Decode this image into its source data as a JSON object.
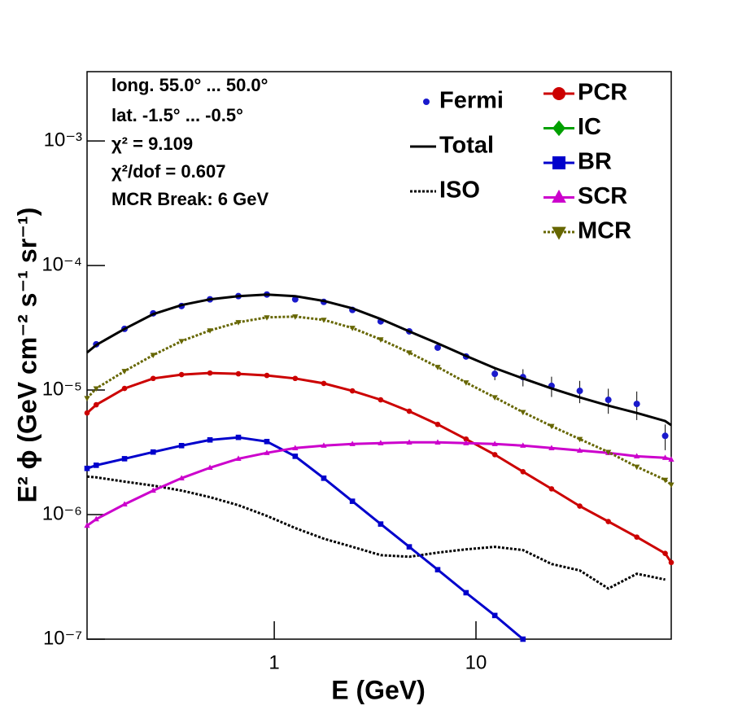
{
  "chart_data": {
    "type": "line",
    "log_x": true,
    "log_y": true,
    "xlabel": "E (GeV)",
    "ylabel": "E² ϕ (GeV cm⁻² s⁻¹ sr⁻¹)",
    "xlim": [
      0.118,
      92.9
    ],
    "ylim": [
      1e-07,
      0.0036
    ],
    "xticks": [
      1,
      10
    ],
    "yticks": [
      {
        "value": 1e-07,
        "label": "10⁻⁷"
      },
      {
        "value": 1e-06,
        "label": "10⁻⁶"
      },
      {
        "value": 1e-05,
        "label": "10⁻⁵"
      },
      {
        "value": 0.0001,
        "label": "10⁻⁴"
      },
      {
        "value": 0.001,
        "label": "10⁻³"
      }
    ],
    "annotations": [
      "long. 55.0° ... 50.0°",
      "lat. -1.5° ... -0.5°",
      "χ² = 9.109",
      "χ²/dof = 0.607",
      "MCR Break:  6 GeV"
    ],
    "series": [
      {
        "name": "Fermi",
        "color": "#1a1acc",
        "marker": "circle",
        "line": "none",
        "x": [
          0.131,
          0.181,
          0.251,
          0.347,
          0.48,
          0.664,
          0.919,
          1.27,
          1.76,
          2.44,
          3.37,
          4.67,
          6.46,
          8.93,
          12.4,
          17.1,
          23.7,
          32.7,
          45.3,
          62.7,
          86.7
        ],
        "values": [
          2.33e-05,
          3.1e-05,
          4.13e-05,
          4.73e-05,
          5.35e-05,
          5.68e-05,
          5.85e-05,
          5.35e-05,
          5.1e-05,
          4.4e-05,
          3.56e-05,
          2.96e-05,
          2.19e-05,
          1.86e-05,
          1.35e-05,
          1.27e-05,
          1.08e-05,
          9.85e-06,
          8.35e-06,
          7.74e-06,
          4.29e-06
        ],
        "errors": [
          4e-07,
          5e-07,
          6e-07,
          7e-07,
          8e-07,
          8e-07,
          9e-07,
          9e-07,
          9e-07,
          8e-07,
          8e-07,
          8e-07,
          8e-07,
          1e-06,
          1.5e-06,
          2e-06,
          2e-06,
          2e-06,
          1.9e-06,
          2e-06,
          1e-06
        ]
      },
      {
        "name": "Total",
        "color": "#000000",
        "marker": "none",
        "line": "solid",
        "x": [
          0.118,
          0.131,
          0.181,
          0.251,
          0.347,
          0.48,
          0.664,
          0.919,
          1.27,
          1.76,
          2.44,
          3.37,
          4.67,
          6.46,
          8.93,
          12.4,
          17.1,
          23.7,
          32.7,
          45.3,
          62.7,
          86.7,
          92.9
        ],
        "values": [
          2e-05,
          2.3e-05,
          3.1e-05,
          4.07e-05,
          4.81e-05,
          5.35e-05,
          5.68e-05,
          5.85e-05,
          5.68e-05,
          5.19e-05,
          4.53e-05,
          3.72e-05,
          2.96e-05,
          2.37e-05,
          1.88e-05,
          1.5e-05,
          1.24e-05,
          1.03e-05,
          8.73e-06,
          7.5e-06,
          6.55e-06,
          5.64e-06,
          5.22e-06
        ]
      },
      {
        "name": "ISO",
        "color": "#000000",
        "marker": "none",
        "line": "dotted",
        "x": [
          0.118,
          0.131,
          0.181,
          0.251,
          0.347,
          0.48,
          0.664,
          0.919,
          1.27,
          1.76,
          2.44,
          3.37,
          4.67,
          6.46,
          8.93,
          12.4,
          17.1,
          23.7,
          32.7,
          45.3,
          62.7,
          86.7,
          92.9
        ],
        "values": [
          2.02e-06,
          1.99e-06,
          1.84e-06,
          1.71e-06,
          1.56e-06,
          1.38e-06,
          1.19e-06,
          9.77e-07,
          7.8e-07,
          6.41e-07,
          5.51e-07,
          4.73e-07,
          4.59e-07,
          4.95e-07,
          5.26e-07,
          5.51e-07,
          5.19e-07,
          4.01e-07,
          3.56e-07,
          2.55e-07,
          3.35e-07,
          3.01e-07,
          null
        ]
      },
      {
        "name": "PCR",
        "color": "#cc0000",
        "marker": "circle",
        "line": "solid",
        "x": [
          0.118,
          0.131,
          0.181,
          0.251,
          0.347,
          0.48,
          0.664,
          0.919,
          1.27,
          1.76,
          2.44,
          3.37,
          4.67,
          6.46,
          8.93,
          12.4,
          17.1,
          23.7,
          32.7,
          45.3,
          62.7,
          86.7,
          92.9
        ],
        "values": [
          6.55e-06,
          7.62e-06,
          1.03e-05,
          1.24e-05,
          1.33e-05,
          1.37e-05,
          1.35e-05,
          1.31e-05,
          1.24e-05,
          1.13e-05,
          9.85e-06,
          8.35e-06,
          6.76e-06,
          5.3e-06,
          4.04e-06,
          3.03e-06,
          2.21e-06,
          1.61e-06,
          1.17e-06,
          8.8e-07,
          6.6e-07,
          4.88e-07,
          4.13e-07
        ]
      },
      {
        "name": "IC",
        "color": "#00a000",
        "marker": "diamond",
        "line": "solid",
        "x": [
          0.118,
          92.9
        ],
        "values": [
          null,
          null
        ]
      },
      {
        "name": "BR",
        "color": "#0000cc",
        "marker": "square",
        "line": "solid",
        "x": [
          0.118,
          0.131,
          0.181,
          0.251,
          0.347,
          0.48,
          0.664,
          0.919,
          1.27,
          1.76,
          2.44,
          3.37,
          4.67,
          6.46,
          8.93,
          12.4,
          17.1,
          23.7,
          32.7,
          45.3,
          62.7,
          86.7,
          92.9
        ],
        "values": [
          2.35e-06,
          2.49e-06,
          2.81e-06,
          3.18e-06,
          3.58e-06,
          3.98e-06,
          4.17e-06,
          3.86e-06,
          2.94e-06,
          1.96e-06,
          1.28e-06,
          8.4e-07,
          5.51e-07,
          3.61e-07,
          2.36e-07,
          1.55e-07,
          1e-07,
          null,
          null,
          null,
          null,
          null,
          null
        ]
      },
      {
        "name": "SCR",
        "color": "#cc00cc",
        "marker": "triangle-up",
        "line": "solid",
        "x": [
          0.118,
          0.131,
          0.181,
          0.251,
          0.347,
          0.48,
          0.664,
          0.919,
          1.27,
          1.76,
          2.44,
          3.37,
          4.67,
          6.46,
          8.93,
          12.4,
          17.1,
          23.7,
          32.7,
          45.3,
          62.7,
          86.7,
          92.9
        ],
        "values": [
          8.15e-07,
          9.2e-07,
          1.21e-06,
          1.56e-06,
          1.96e-06,
          2.38e-06,
          2.81e-06,
          3.13e-06,
          3.42e-06,
          3.58e-06,
          3.69e-06,
          3.75e-06,
          3.8e-06,
          3.8e-06,
          3.75e-06,
          3.69e-06,
          3.58e-06,
          3.42e-06,
          3.27e-06,
          3.13e-06,
          2.94e-06,
          2.86e-06,
          2.77e-06
        ]
      },
      {
        "name": "MCR",
        "color": "#666600",
        "marker": "triangle-down",
        "line": "dotted",
        "x": [
          0.118,
          0.131,
          0.181,
          0.251,
          0.347,
          0.48,
          0.664,
          0.919,
          1.27,
          1.76,
          2.44,
          3.37,
          4.67,
          6.46,
          8.93,
          12.4,
          17.1,
          23.7,
          32.7,
          45.3,
          62.7,
          86.7,
          92.9
        ],
        "values": [
          8.6e-06,
          1.03e-05,
          1.42e-05,
          1.91e-05,
          2.47e-05,
          3.01e-05,
          3.5e-05,
          3.83e-05,
          3.89e-05,
          3.66e-05,
          3.15e-05,
          2.55e-05,
          2e-05,
          1.53e-05,
          1.15e-05,
          8.73e-06,
          6.65e-06,
          5.14e-06,
          4.04e-06,
          3.18e-06,
          2.42e-06,
          1.9e-06,
          1.74e-06
        ]
      }
    ]
  }
}
